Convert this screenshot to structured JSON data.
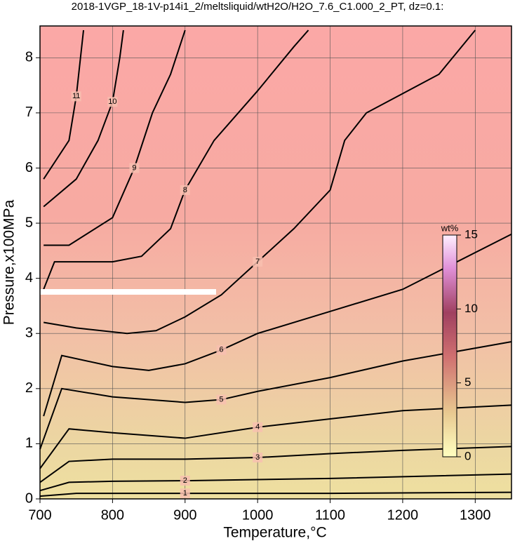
{
  "chart_data": {
    "type": "contour",
    "title": "2018-1VGP_18-1V-p14i1_2/meltsliquid/wtH2O/H2O_7.6_C1.000_2_PT, dz=0.1:",
    "xlabel": "Temperature,°C",
    "ylabel": "Pressure,x100MPa",
    "xlim": [
      700,
      1350
    ],
    "ylim": [
      0,
      8.5
    ],
    "xticks": [
      700,
      800,
      900,
      1000,
      1100,
      1200,
      1300
    ],
    "yticks": [
      0,
      1,
      2,
      3,
      4,
      5,
      6,
      7,
      8
    ],
    "grid": true,
    "line_color": "#000000",
    "contours": [
      {
        "level": 1,
        "points": [
          [
            700,
            0.05
          ],
          [
            750,
            0.1
          ],
          [
            900,
            0.1
          ],
          [
            1100,
            0.1
          ],
          [
            1350,
            0.12
          ]
        ]
      },
      {
        "level": 2,
        "points": [
          [
            700,
            0.15
          ],
          [
            740,
            0.3
          ],
          [
            800,
            0.32
          ],
          [
            900,
            0.33
          ],
          [
            1100,
            0.37
          ],
          [
            1350,
            0.45
          ]
        ]
      },
      {
        "level": 3,
        "points": [
          [
            700,
            0.3
          ],
          [
            740,
            0.68
          ],
          [
            800,
            0.72
          ],
          [
            900,
            0.72
          ],
          [
            1000,
            0.75
          ],
          [
            1100,
            0.82
          ],
          [
            1200,
            0.88
          ],
          [
            1350,
            0.95
          ]
        ]
      },
      {
        "level": 4,
        "points": [
          [
            700,
            0.55
          ],
          [
            740,
            1.27
          ],
          [
            800,
            1.2
          ],
          [
            900,
            1.1
          ],
          [
            1000,
            1.3
          ],
          [
            1100,
            1.45
          ],
          [
            1200,
            1.6
          ],
          [
            1350,
            1.7
          ]
        ]
      },
      {
        "level": 5,
        "points": [
          [
            700,
            0.9
          ],
          [
            730,
            2.0
          ],
          [
            800,
            1.85
          ],
          [
            900,
            1.75
          ],
          [
            950,
            1.8
          ],
          [
            1000,
            1.95
          ],
          [
            1100,
            2.2
          ],
          [
            1200,
            2.5
          ],
          [
            1350,
            2.85
          ]
        ]
      },
      {
        "level": 6,
        "points": [
          [
            705,
            1.5
          ],
          [
            730,
            2.6
          ],
          [
            800,
            2.4
          ],
          [
            850,
            2.33
          ],
          [
            900,
            2.45
          ],
          [
            950,
            2.7
          ],
          [
            1000,
            3.0
          ],
          [
            1100,
            3.4
          ],
          [
            1200,
            3.8
          ],
          [
            1350,
            4.8
          ]
        ]
      },
      {
        "level": 7,
        "points": [
          [
            705,
            3.2
          ],
          [
            750,
            3.1
          ],
          [
            820,
            3.0
          ],
          [
            860,
            3.05
          ],
          [
            900,
            3.3
          ],
          [
            950,
            3.7
          ],
          [
            1000,
            4.3
          ],
          [
            1050,
            4.9
          ],
          [
            1100,
            5.6
          ],
          [
            1120,
            6.5
          ],
          [
            1150,
            7.0
          ],
          [
            1250,
            7.7
          ],
          [
            1300,
            8.5
          ]
        ]
      },
      {
        "level": 8,
        "points": [
          [
            705,
            3.8
          ],
          [
            720,
            4.3
          ],
          [
            800,
            4.3
          ],
          [
            840,
            4.4
          ],
          [
            880,
            4.9
          ],
          [
            900,
            5.6
          ],
          [
            940,
            6.5
          ],
          [
            1000,
            7.4
          ],
          [
            1050,
            8.2
          ],
          [
            1070,
            8.5
          ]
        ]
      },
      {
        "level": 9,
        "points": [
          [
            705,
            4.6
          ],
          [
            740,
            4.6
          ],
          [
            800,
            5.1
          ],
          [
            830,
            6.0
          ],
          [
            855,
            7.0
          ],
          [
            880,
            7.7
          ],
          [
            900,
            8.5
          ]
        ]
      },
      {
        "level": 10,
        "points": [
          [
            705,
            5.3
          ],
          [
            750,
            5.8
          ],
          [
            780,
            6.5
          ],
          [
            800,
            7.2
          ],
          [
            810,
            8.0
          ],
          [
            815,
            8.5
          ]
        ]
      },
      {
        "level": 11,
        "points": [
          [
            705,
            5.8
          ],
          [
            740,
            6.5
          ],
          [
            750,
            7.3
          ],
          [
            760,
            8.5
          ]
        ]
      }
    ],
    "colorbar": {
      "label": "wt%",
      "lim": [
        0,
        15
      ],
      "ticks": [
        0,
        5,
        10,
        15
      ]
    }
  }
}
